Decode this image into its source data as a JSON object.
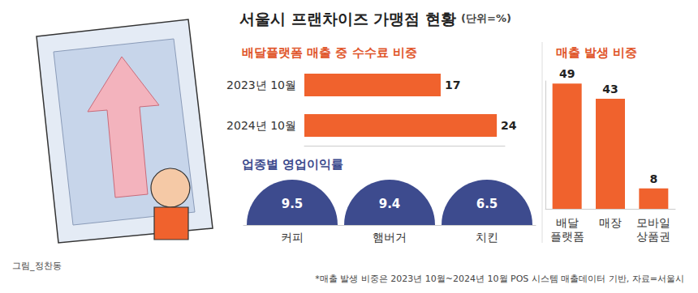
{
  "header": {
    "title": "서울시 프랜차이즈 가맹점 현황",
    "unit": "(단위=%)"
  },
  "chart_data": [
    {
      "type": "bar",
      "orientation": "horizontal",
      "title": "배달플랫폼 매출 중 수수료 비중",
      "categories": [
        "2023년 10월",
        "2024년 10월"
      ],
      "values": [
        17,
        24
      ],
      "color": "#f0622d",
      "xlim": [
        0,
        25
      ],
      "xticks": [],
      "tick_labels": "y",
      "data_labels": true,
      "grid": false
    },
    {
      "type": "semicircle",
      "title": "업종별 영업이익률",
      "categories": [
        "커피",
        "햄버거",
        "치킨"
      ],
      "values": [
        9.5,
        9.4,
        6.5
      ],
      "color": "#3d4b8e",
      "data_labels": true
    },
    {
      "type": "bar",
      "title": "매출 발생 비중",
      "categories": [
        "배달\n플랫폼",
        "매장",
        "모바일\n상품권"
      ],
      "values": [
        49,
        43,
        8
      ],
      "color": "#f0622d",
      "ylim": [
        0,
        50
      ],
      "yticks": [],
      "tick_labels": "x",
      "data_labels": true,
      "grid": false
    }
  ],
  "footnote": "*매출 발생 비중은 2023년 10월~2024년 10월 POS 시스템 매출데이터 기반, 자료=서울시",
  "credit": "그림_정찬동"
}
